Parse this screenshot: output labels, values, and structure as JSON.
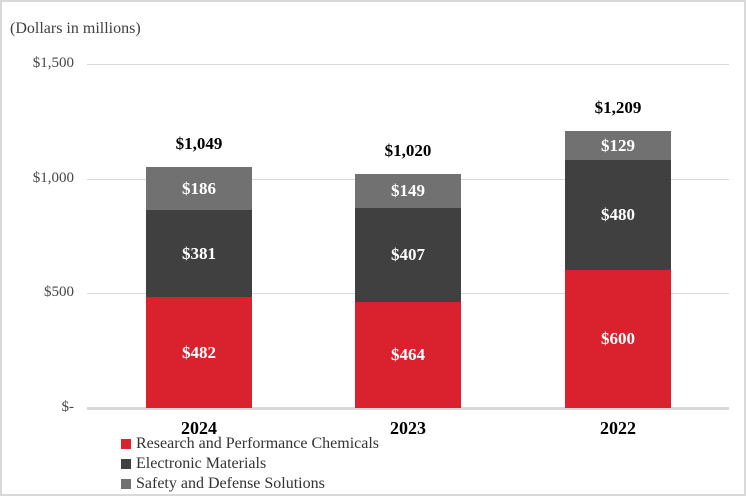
{
  "chart_data": {
    "type": "bar",
    "stacked": true,
    "title": "(Dollars in millions)",
    "categories": [
      "2024",
      "2023",
      "2022"
    ],
    "series": [
      {
        "name": "Research and Performance Chemicals",
        "color": "#d9222e",
        "values": [
          482,
          464,
          600
        ]
      },
      {
        "name": "Electronic Materials",
        "color": "#404040",
        "values": [
          381,
          407,
          480
        ]
      },
      {
        "name": "Safety and Defense Solutions",
        "color": "#717171",
        "values": [
          186,
          149,
          129
        ]
      }
    ],
    "totals": [
      1049,
      1020,
      1209
    ],
    "total_labels": [
      "$1,049",
      "$1,020",
      "$1,209"
    ],
    "segment_labels": [
      [
        "$482",
        "$381",
        "$186"
      ],
      [
        "$464",
        "$407",
        "$149"
      ],
      [
        "$600",
        "$480",
        "$129"
      ]
    ],
    "y_axis": {
      "ticks": [
        {
          "label": "$1,500",
          "value": 1500
        },
        {
          "label": "$1,000",
          "value": 1000
        },
        {
          "label": "$500",
          "value": 500
        },
        {
          "label": "$-",
          "value": 0
        }
      ]
    },
    "ylim": [
      0,
      1500
    ],
    "xlabel": "",
    "ylabel": "",
    "grid": true,
    "legend_position": "bottom-left",
    "colors": {
      "gridline": "#d9d9d9",
      "page_border": "#d9d9d9",
      "axis_text": "#474747",
      "total_text": "#000000",
      "segment_text": "#ffffff"
    }
  }
}
